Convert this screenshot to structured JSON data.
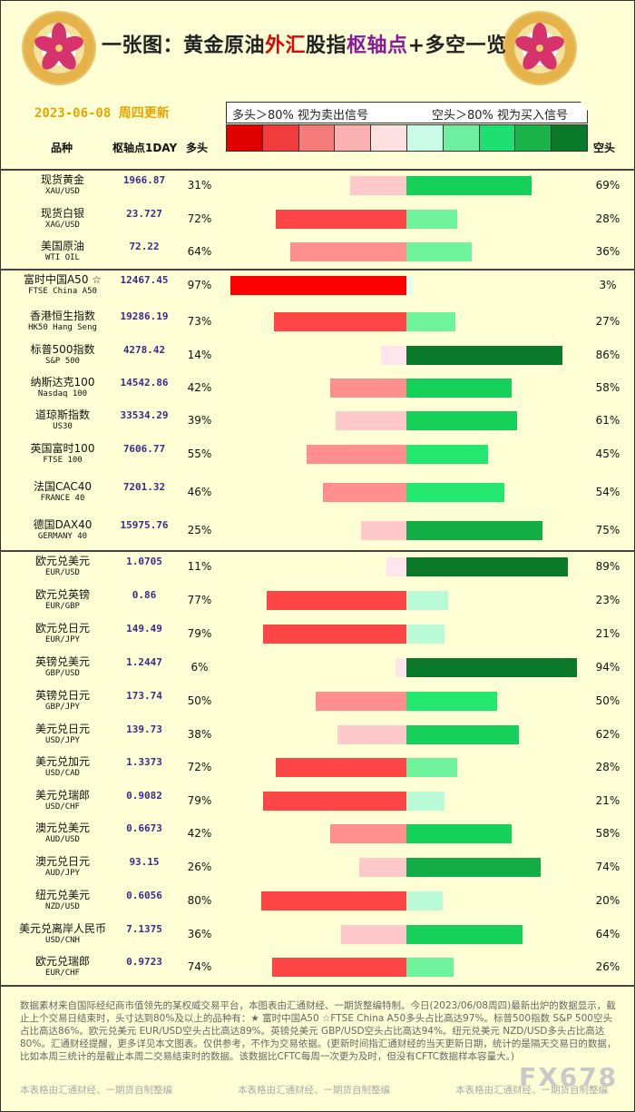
{
  "title": {
    "part1": "一张图：黄金原油",
    "part2": "外汇",
    "part3": "股指",
    "part4": "枢轴点",
    "part5": "+多空一览"
  },
  "date_line": "2023-06-08 周四更新",
  "legend": {
    "left": "多头＞80% 视为卖出信号",
    "right": "空头＞80% 视为买入信号"
  },
  "scale_colors": [
    "#e00000",
    "#f03c3c",
    "#f57a7a",
    "#f9b1b1",
    "#fde0e0",
    "#c9fbe6",
    "#6ff0a0",
    "#1ee072",
    "#19b34a",
    "#0a7a2a"
  ],
  "headers": {
    "name": "品种",
    "pivot": "枢轴点1DAY",
    "long": "多头",
    "short": "空头"
  },
  "chart_data": {
    "type": "bar",
    "title": "一张图：黄金原油外汇股指枢轴点+多空一览",
    "series": [
      {
        "name": "多头"
      },
      {
        "name": "空头"
      }
    ],
    "rows": [
      {
        "cn": "现货黄金",
        "en": "XAU/USD",
        "pivot": "1966.87",
        "long": 31,
        "short": 69
      },
      {
        "cn": "现货白银",
        "en": "XAG/USD",
        "pivot": "23.727",
        "long": 72,
        "short": 28
      },
      {
        "cn": "美国原油",
        "en": "WTI OIL",
        "pivot": "72.22",
        "long": 64,
        "short": 36
      },
      {
        "cn": "富时中国A50 ☆",
        "en": "FTSE China A50",
        "pivot": "12467.45",
        "long": 97,
        "short": 3
      },
      {
        "cn": "香港恒生指数",
        "en": "HK50 Hang Seng",
        "pivot": "19286.19",
        "long": 73,
        "short": 27
      },
      {
        "cn": "标普500指数",
        "en": "S&P 500",
        "pivot": "4278.42",
        "long": 14,
        "short": 86
      },
      {
        "cn": "纳斯达克100",
        "en": "Nasdaq 100",
        "pivot": "14542.86",
        "long": 42,
        "short": 58
      },
      {
        "cn": "道琼斯指数",
        "en": "US30",
        "pivot": "33534.29",
        "long": 39,
        "short": 61
      },
      {
        "cn": "英国富时100",
        "en": "FTSE 100",
        "pivot": "7606.77",
        "long": 55,
        "short": 45
      },
      {
        "cn": "法国CAC40",
        "en": "FRANCE 40",
        "pivot": "7201.32",
        "long": 46,
        "short": 54
      },
      {
        "cn": "德国DAX40",
        "en": "GERMANY 40",
        "pivot": "15975.76",
        "long": 25,
        "short": 75
      },
      {
        "cn": "欧元兑美元",
        "en": "EUR/USD",
        "pivot": "1.0705",
        "long": 11,
        "short": 89
      },
      {
        "cn": "欧元兑英镑",
        "en": "EUR/GBP",
        "pivot": "0.86",
        "long": 77,
        "short": 23
      },
      {
        "cn": "欧元兑日元",
        "en": "EUR/JPY",
        "pivot": "149.49",
        "long": 79,
        "short": 21
      },
      {
        "cn": "英镑兑美元",
        "en": "GBP/USD",
        "pivot": "1.2447",
        "long": 6,
        "short": 94
      },
      {
        "cn": "英镑兑日元",
        "en": "GBP/JPY",
        "pivot": "173.74",
        "long": 50,
        "short": 50
      },
      {
        "cn": "美元兑日元",
        "en": "USD/JPY",
        "pivot": "139.73",
        "long": 38,
        "short": 62
      },
      {
        "cn": "美元兑加元",
        "en": "USD/CAD",
        "pivot": "1.3373",
        "long": 72,
        "short": 28
      },
      {
        "cn": "美元兑瑞郎",
        "en": "USD/CHF",
        "pivot": "0.9082",
        "long": 79,
        "short": 21
      },
      {
        "cn": "澳元兑美元",
        "en": "AUD/USD",
        "pivot": "0.6673",
        "long": 42,
        "short": 58
      },
      {
        "cn": "澳元兑日元",
        "en": "AUD/JPY",
        "pivot": "93.15",
        "long": 26,
        "short": 74
      },
      {
        "cn": "纽元兑美元",
        "en": "NZD/USD",
        "pivot": "0.6056",
        "long": 80,
        "short": 20
      },
      {
        "cn": "美元兑离岸人民币",
        "en": "USD/CNH",
        "pivot": "7.1375",
        "long": 36,
        "short": 64
      },
      {
        "cn": "欧元兑瑞郎",
        "en": "EUR/CHF",
        "pivot": "0.9723",
        "long": 74,
        "short": 26
      }
    ]
  },
  "footnote": "数据素材来自国际经纪商市值领先的某权威交易平台，本图表由汇通财经、一期货整编特制。今日(2023/06/08周四)最新出炉的数据显示，截止上个交易日结束时，头寸达到80%及以上的品种有：★ 富时中国A50 ☆FTSE China A50多头占比高达97%。标普500指数 S&P 500空头占比高达86%。欧元兑美元 EUR/USD空头占比高达89%。英镑兑美元 GBP/USD空头占比高达94%。纽元兑美元 NZD/USD多头占比高达80%。汇通财经提醒，更多详见本文图表。仅供参考，不作为交易依据。(更新时间指汇通财经的当天更新日期，统计的是隔天交易日的数据，比如本周三统计的是截止本周二交易结束时的数据。该数据比CFTC每周一次更为及时，但没有CFTC数据样本容量大。)",
  "footer_credit": "本表格由汇通财经、一期货自制整编",
  "watermark": "FX678"
}
